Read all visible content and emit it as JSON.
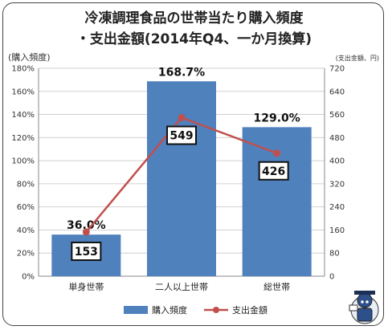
{
  "title_line1": "冷凍調理食品の世帯当たり購入頻度",
  "title_line2": "・支出金額(2014年Q4、一か月換算)",
  "chart_data": {
    "type": "bar",
    "categories": [
      "単身世帯",
      "二人以上世帯",
      "総世帯"
    ],
    "series": [
      {
        "name": "購入頻度",
        "type": "bar",
        "axis": "left",
        "values": [
          36.0,
          168.7,
          129.0
        ],
        "color": "#4f81bd"
      },
      {
        "name": "支出金額",
        "type": "line",
        "axis": "right",
        "values": [
          153,
          549,
          426
        ],
        "color": "#c0504d"
      }
    ],
    "bar_labels": [
      "36.0%",
      "168.7%",
      "129.0%"
    ],
    "line_labels": [
      "153",
      "549",
      "426"
    ],
    "left_axis": {
      "label": "(購入頻度)",
      "ticks": [
        "0%",
        "20%",
        "40%",
        "60%",
        "80%",
        "100%",
        "120%",
        "140%",
        "160%",
        "180%"
      ],
      "ylim": [
        0,
        180
      ]
    },
    "right_axis": {
      "label": "(支出金額、円)",
      "ticks": [
        "0",
        "80",
        "160",
        "240",
        "320",
        "400",
        "480",
        "560",
        "640",
        "720"
      ],
      "ylim": [
        0,
        720
      ]
    },
    "grid": true,
    "legend_position": "bottom"
  }
}
